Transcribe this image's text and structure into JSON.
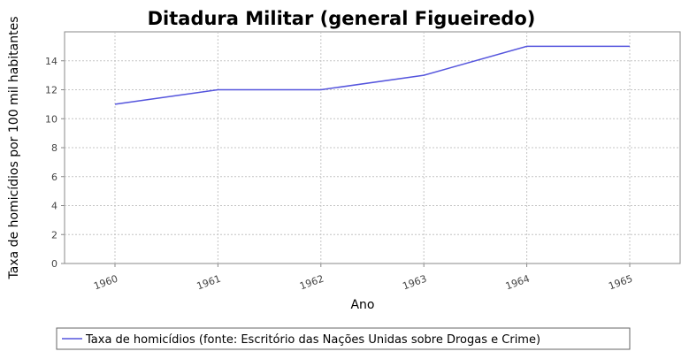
{
  "chart_data": {
    "type": "line",
    "title": "Ditadura Militar (general Figueiredo)",
    "xlabel": "Ano",
    "ylabel": "Taxa de homicídios por 100 mil habitantes",
    "x": [
      "1960",
      "1961",
      "1962",
      "1963",
      "1964",
      "1965"
    ],
    "series": [
      {
        "name": "Taxa de homicídios (fonte: Escritório das Nações Unidas sobre Drogas e Crime)",
        "values": [
          11,
          12,
          12,
          13,
          15,
          15
        ]
      }
    ],
    "ylim": [
      0,
      16
    ],
    "yticks": [
      0,
      2,
      4,
      6,
      8,
      10,
      12,
      14
    ],
    "grid": true,
    "legend": "bottom-center",
    "colors": {
      "series": "#5555dd",
      "grid": "#c4c4c4",
      "axis": "#888888",
      "background": "#ffffff"
    }
  }
}
